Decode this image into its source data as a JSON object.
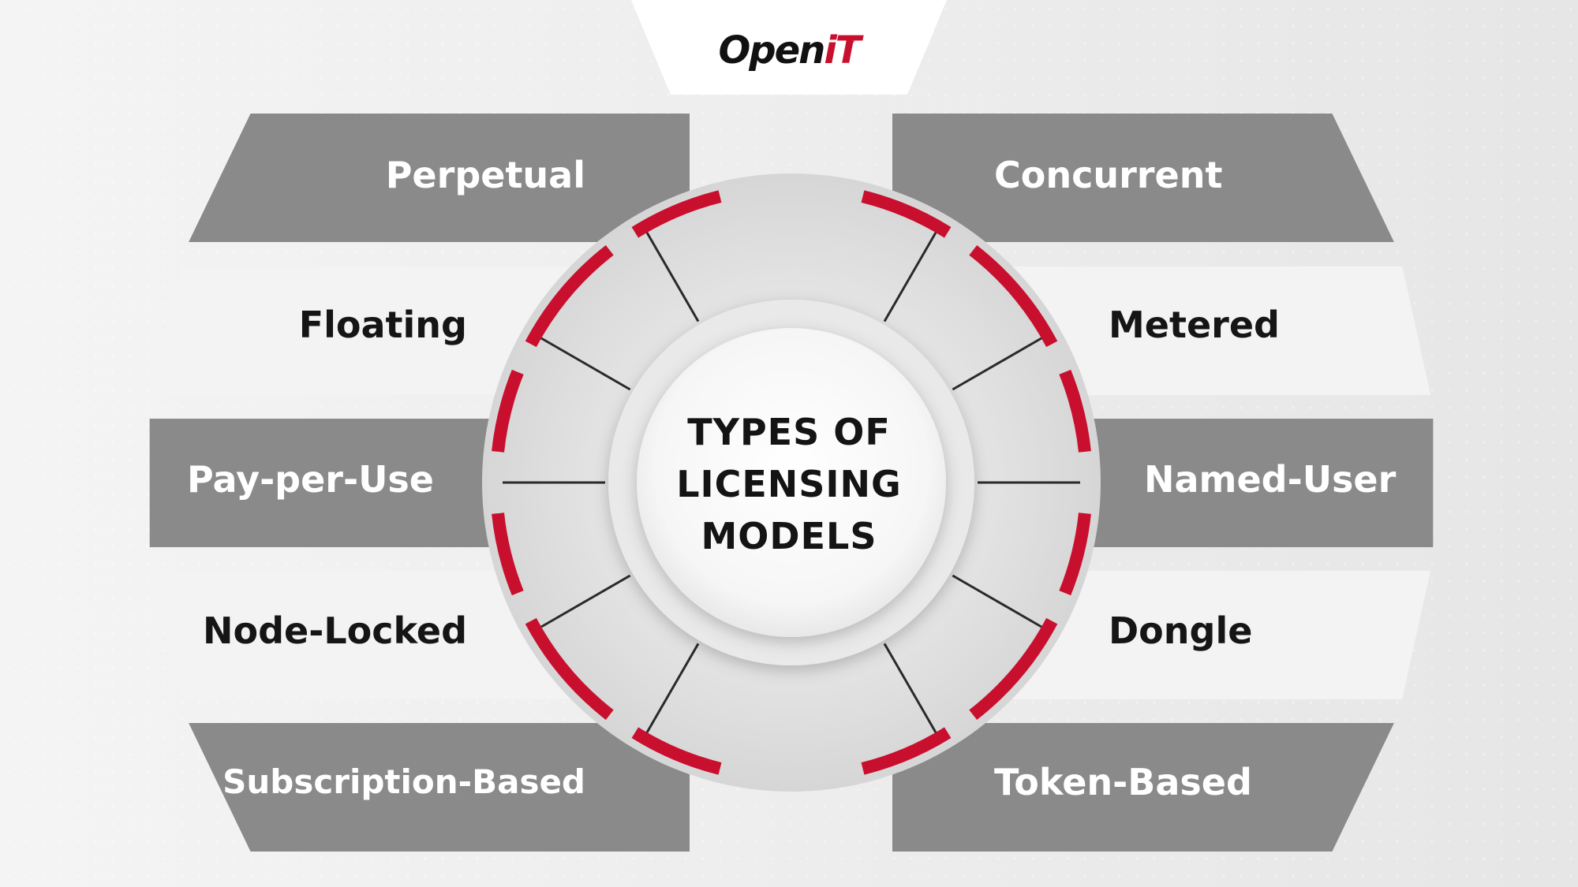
{
  "logo": {
    "open": "Open",
    "it": "iT",
    "registered": "®"
  },
  "center": {
    "line1": "TYPES OF",
    "line2": "LICENSING",
    "line3": "MODELS"
  },
  "left_items": [
    {
      "label": "Perpetual",
      "style": "dark"
    },
    {
      "label": "Floating",
      "style": "light"
    },
    {
      "label": "Pay-per-Use",
      "style": "dark"
    },
    {
      "label": "Node-Locked",
      "style": "light"
    },
    {
      "label": "Subscription-Based",
      "style": "dark"
    }
  ],
  "right_items": [
    {
      "label": "Concurrent",
      "style": "dark"
    },
    {
      "label": "Metered",
      "style": "light"
    },
    {
      "label": "Named-User",
      "style": "dark"
    },
    {
      "label": "Dongle",
      "style": "light"
    },
    {
      "label": "Token-Based",
      "style": "dark"
    }
  ],
  "colors": {
    "accent": "#c8102e",
    "dark_band": "#8a8a8a",
    "light_band": "#f3f3f3",
    "text_dark": "#151515",
    "text_light": "#ffffff"
  }
}
